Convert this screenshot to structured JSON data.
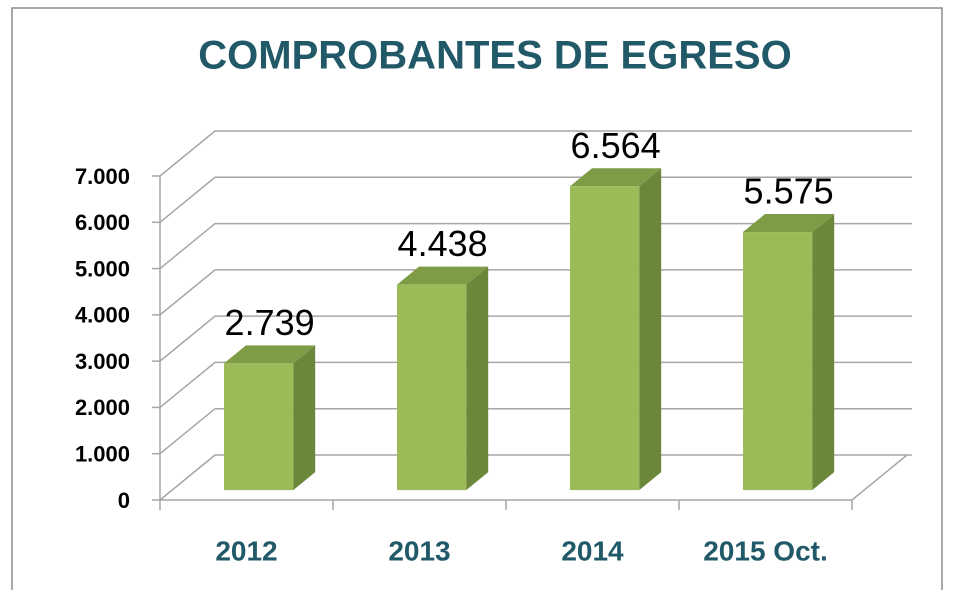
{
  "chart_data": {
    "type": "bar3d",
    "title": "COMPROBANTES DE EGRESO",
    "categories": [
      "2012",
      "2013",
      "2014",
      "2015 Oct."
    ],
    "values": [
      2739,
      4438,
      6564,
      5575
    ],
    "value_labels": [
      "2.739",
      "4.438",
      "6.564",
      "5.575"
    ],
    "color": "#9bbb59",
    "ylim": [
      0,
      7000
    ],
    "yticks": [
      0,
      {
        "value": 1000,
        "label": "1.000"
      },
      {
        "value": 2000,
        "label": "2.000"
      },
      {
        "value": 3000,
        "label": "3.000"
      },
      {
        "value": 4000,
        "label": "4.000"
      },
      {
        "value": 5000,
        "label": "5.000"
      },
      {
        "value": 6000,
        "label": "6.000"
      },
      {
        "value": 7000,
        "label": "7.000"
      }
    ],
    "grid": true
  }
}
